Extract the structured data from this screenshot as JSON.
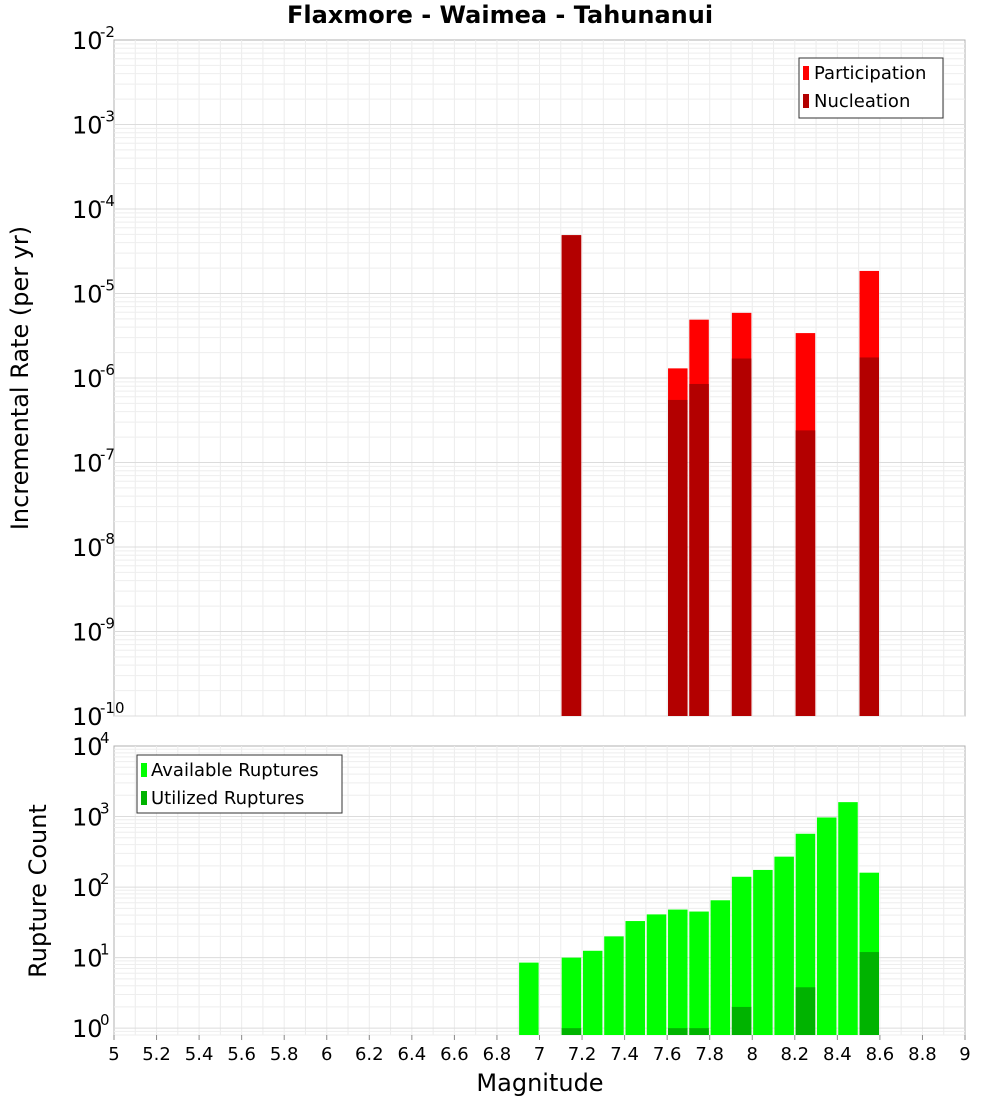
{
  "title": "Flaxmore - Waimea - Tahunanui",
  "xlabel": "Magnitude",
  "chart_data": [
    {
      "type": "bar",
      "title": "Flaxmore - Waimea - Tahunanui",
      "ylabel": "Incremental Rate (per yr)",
      "yscale": "log",
      "ylim": [
        1e-10,
        0.01
      ],
      "y_tick_exponents": [
        -10,
        -9,
        -8,
        -7,
        -6,
        -5,
        -4,
        -3,
        -2
      ],
      "xlim": [
        5,
        9
      ],
      "grid": true,
      "legend_position": "top-right",
      "series": [
        {
          "name": "Participation",
          "color": "#ff0000",
          "x": [
            7.15,
            7.65,
            7.75,
            7.95,
            8.25,
            8.55
          ],
          "values": [
            4.9e-05,
            1.3e-06,
            4.9e-06,
            5.9e-06,
            3.4e-06,
            1.85e-05
          ]
        },
        {
          "name": "Nucleation",
          "color": "#b30000",
          "x": [
            7.15,
            7.65,
            7.75,
            7.95,
            8.25,
            8.55
          ],
          "values": [
            4.9e-05,
            5.5e-07,
            8.5e-07,
            1.7e-06,
            2.4e-07,
            1.75e-06
          ]
        }
      ]
    },
    {
      "type": "bar",
      "ylabel": "Rupture Count",
      "xlabel": "Magnitude",
      "yscale": "log",
      "ylim": [
        0.8,
        10000
      ],
      "y_tick_exponents": [
        0,
        1,
        2,
        3,
        4
      ],
      "xlim": [
        5,
        9
      ],
      "x_ticks": [
        "5",
        "5.2",
        "5.4",
        "5.6",
        "5.8",
        "6",
        "6.2",
        "6.4",
        "6.6",
        "6.8",
        "7",
        "7.2",
        "7.4",
        "7.6",
        "7.8",
        "8",
        "8.2",
        "8.4",
        "8.6",
        "8.8",
        "9"
      ],
      "grid": true,
      "legend_position": "top-left",
      "series": [
        {
          "name": "Available Ruptures",
          "color": "#00ff00",
          "x": [
            6.95,
            7.15,
            7.25,
            7.35,
            7.45,
            7.55,
            7.65,
            7.75,
            7.85,
            7.95,
            8.05,
            8.15,
            8.25,
            8.35,
            8.45,
            8.55
          ],
          "values": [
            8.5,
            10,
            12.5,
            20,
            33,
            41,
            48,
            45,
            65,
            140,
            175,
            270,
            570,
            970,
            1600,
            160
          ]
        },
        {
          "name": "Utilized Ruptures",
          "color": "#00b300",
          "x": [
            7.15,
            7.65,
            7.75,
            7.95,
            8.25,
            8.55
          ],
          "values": [
            1,
            1,
            1,
            2,
            3.8,
            12
          ]
        }
      ]
    }
  ]
}
